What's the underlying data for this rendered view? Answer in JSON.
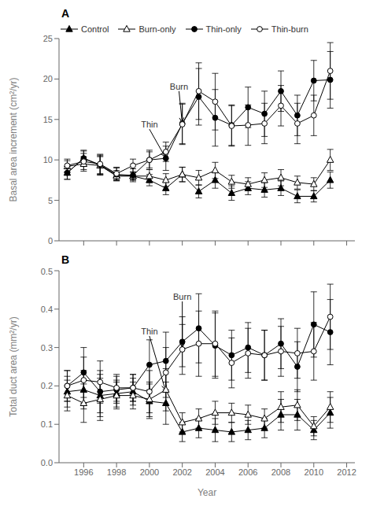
{
  "chart_data": [
    {
      "type": "line",
      "title": "A",
      "ylabel": "Basal area increment (cm²/yr)",
      "x": [
        1995,
        1996,
        1997,
        1998,
        1999,
        2000,
        2001,
        2002,
        2003,
        2004,
        2005,
        2006,
        2007,
        2008,
        2009,
        2010,
        2011
      ],
      "xlim": [
        1994.5,
        2012.5
      ],
      "xticks": [
        1996,
        1998,
        2000,
        2002,
        2004,
        2006,
        2008,
        2010,
        2012
      ],
      "ylim": [
        0,
        25
      ],
      "yticks": [
        0,
        5,
        10,
        15,
        20,
        25
      ],
      "tick_labels": "y",
      "grid": false,
      "legend": "upper left",
      "series": [
        {
          "name": "Control",
          "color": "#000000",
          "marker": "triangle",
          "values": [
            8.4,
            10.2,
            9.3,
            8.1,
            8.0,
            7.5,
            6.5,
            8.2,
            6.1,
            7.5,
            5.9,
            6.5,
            6.3,
            6.5,
            5.5,
            5.5,
            7.5
          ],
          "error": [
            0.8,
            0.9,
            1.2,
            0.6,
            0.5,
            0.7,
            0.8,
            0.9,
            0.8,
            1.0,
            0.9,
            0.8,
            0.9,
            0.9,
            0.8,
            0.7,
            1.0
          ]
        },
        {
          "name": "Burn-only",
          "color": "#000000",
          "marker": "triangle-open",
          "values": [
            9.2,
            9.5,
            9.3,
            8.0,
            8.0,
            8.0,
            7.5,
            8.2,
            7.8,
            8.7,
            7.3,
            7.0,
            7.5,
            7.8,
            7.2,
            7.0,
            10.0
          ],
          "error": [
            0.7,
            0.9,
            1.1,
            0.5,
            0.5,
            0.8,
            0.8,
            0.9,
            0.9,
            1.0,
            0.8,
            0.8,
            0.9,
            1.0,
            0.8,
            0.8,
            1.3
          ]
        },
        {
          "name": "Thin-only",
          "color": "#000000",
          "marker": "circle",
          "values": [
            8.4,
            10.2,
            9.4,
            8.2,
            8.1,
            10.0,
            10.2,
            14.5,
            17.8,
            15.2,
            14.3,
            16.5,
            15.7,
            18.5,
            15.5,
            19.8,
            19.9
          ],
          "error": [
            0.8,
            1.0,
            1.2,
            0.8,
            0.8,
            1.2,
            1.5,
            2.5,
            3.5,
            3.5,
            2.5,
            2.5,
            2.8,
            2.5,
            2.5,
            2.5,
            3.5
          ]
        },
        {
          "name": "Thin-burn",
          "color": "#000000",
          "marker": "circle-open",
          "values": [
            9.3,
            9.8,
            9.5,
            8.3,
            9.3,
            10.0,
            11.0,
            14.4,
            18.5,
            17.2,
            14.2,
            14.3,
            14.5,
            16.7,
            14.5,
            15.5,
            21.0
          ],
          "error": [
            0.8,
            1.0,
            1.2,
            0.8,
            0.8,
            1.0,
            1.2,
            2.5,
            3.5,
            3.5,
            2.5,
            2.5,
            2.5,
            2.5,
            2.5,
            2.5,
            3.5
          ]
        }
      ],
      "annotations": [
        {
          "text": "Thin",
          "x": 2001,
          "y": 10.2,
          "text_x": 2000.0,
          "text_y": 13.8
        },
        {
          "text": "Burn",
          "x": 2002,
          "y": 14.4,
          "text_x": 2001.8,
          "text_y": 18.5
        }
      ]
    },
    {
      "type": "line",
      "title": "B",
      "ylabel": "Total duct area (mm²/yr)",
      "xlabel": "Year",
      "x": [
        1995,
        1996,
        1997,
        1998,
        1999,
        2000,
        2001,
        2002,
        2003,
        2004,
        2005,
        2006,
        2007,
        2008,
        2009,
        2010,
        2011
      ],
      "xlim": [
        1994.5,
        2012.5
      ],
      "xticks": [
        1996,
        1998,
        2000,
        2002,
        2004,
        2006,
        2008,
        2010,
        2012
      ],
      "ylim": [
        0.0,
        0.5
      ],
      "yticks": [
        {
          "value": 0.0,
          "label": "0.0"
        },
        0.1,
        0.2,
        0.3,
        0.4,
        0.5
      ],
      "grid": false,
      "series": [
        {
          "name": "Control",
          "color": "#000000",
          "marker": "triangle",
          "values": [
            0.185,
            0.19,
            0.175,
            0.18,
            0.185,
            0.16,
            0.155,
            0.08,
            0.09,
            0.085,
            0.08,
            0.085,
            0.09,
            0.125,
            0.125,
            0.085,
            0.13
          ],
          "error": [
            0.04,
            0.05,
            0.055,
            0.035,
            0.035,
            0.045,
            0.055,
            0.025,
            0.025,
            0.03,
            0.025,
            0.025,
            0.025,
            0.04,
            0.04,
            0.025,
            0.04
          ]
        },
        {
          "name": "Burn-only",
          "color": "#000000",
          "marker": "triangle-open",
          "values": [
            0.175,
            0.155,
            0.165,
            0.175,
            0.175,
            0.165,
            0.19,
            0.105,
            0.115,
            0.13,
            0.13,
            0.125,
            0.115,
            0.145,
            0.15,
            0.095,
            0.145
          ],
          "error": [
            0.04,
            0.05,
            0.055,
            0.035,
            0.035,
            0.045,
            0.055,
            0.025,
            0.025,
            0.03,
            0.025,
            0.025,
            0.025,
            0.04,
            0.04,
            0.025,
            0.04
          ]
        },
        {
          "name": "Thin-only",
          "color": "#000000",
          "marker": "circle",
          "values": [
            0.2,
            0.235,
            0.185,
            0.19,
            0.195,
            0.255,
            0.265,
            0.315,
            0.35,
            0.305,
            0.28,
            0.3,
            0.28,
            0.31,
            0.25,
            0.36,
            0.34
          ],
          "error": [
            0.04,
            0.065,
            0.055,
            0.035,
            0.035,
            0.065,
            0.075,
            0.065,
            0.09,
            0.085,
            0.065,
            0.065,
            0.065,
            0.065,
            0.065,
            0.085,
            0.085
          ]
        },
        {
          "name": "Thin-burn",
          "color": "#000000",
          "marker": "circle-open",
          "values": [
            0.2,
            0.215,
            0.21,
            0.195,
            0.195,
            0.185,
            0.235,
            0.295,
            0.31,
            0.31,
            0.26,
            0.285,
            0.28,
            0.29,
            0.285,
            0.29,
            0.38
          ],
          "error": [
            0.04,
            0.06,
            0.055,
            0.035,
            0.035,
            0.055,
            0.065,
            0.065,
            0.085,
            0.085,
            0.065,
            0.065,
            0.065,
            0.065,
            0.065,
            0.075,
            0.085
          ]
        }
      ],
      "annotations": [
        {
          "text": "Thin",
          "x": 2001,
          "y": 0.185,
          "text_x": 2000.0,
          "text_y": 0.33
        },
        {
          "text": "Burn",
          "x": 2002,
          "y": 0.295,
          "text_x": 2002.0,
          "text_y": 0.42
        }
      ]
    }
  ]
}
